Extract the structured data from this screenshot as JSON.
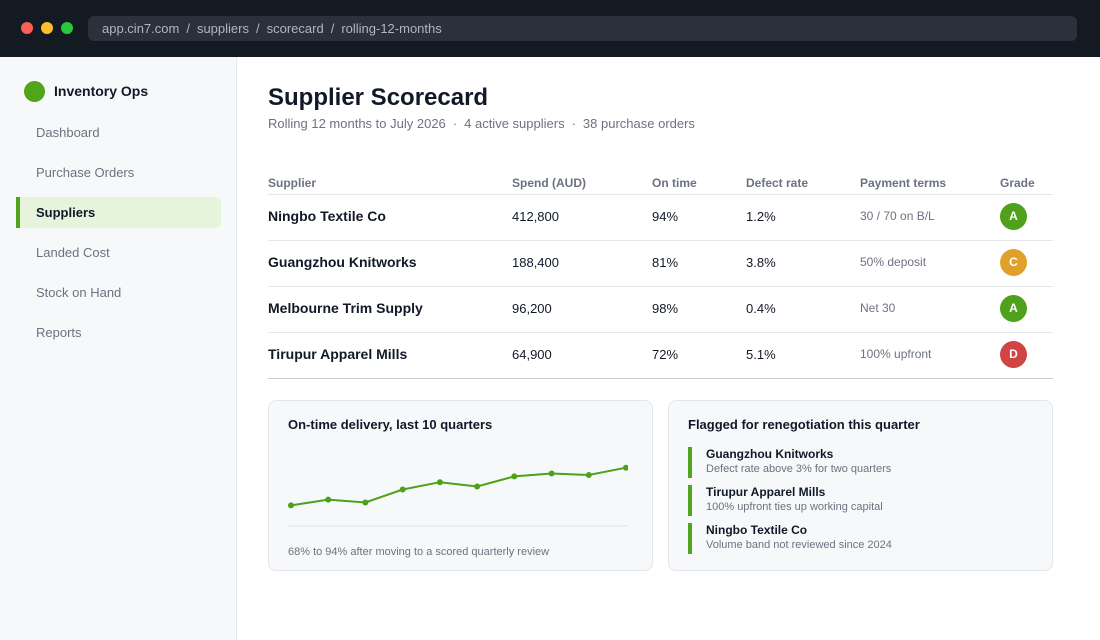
{
  "browser": {
    "url_parts": [
      "app.cin7.com",
      "suppliers",
      "scorecard",
      "rolling-12-months"
    ]
  },
  "sidebar": {
    "brand": "Inventory Ops",
    "items": [
      {
        "label": "Dashboard",
        "active": false
      },
      {
        "label": "Purchase Orders",
        "active": false
      },
      {
        "label": "Suppliers",
        "active": true
      },
      {
        "label": "Landed Cost",
        "active": false
      },
      {
        "label": "Stock on Hand",
        "active": false
      },
      {
        "label": "Reports",
        "active": false
      }
    ]
  },
  "header": {
    "title": "Supplier Scorecard",
    "subtitle_parts": [
      "Rolling 12 months to July 2026",
      "4 active suppliers",
      "38 purchase orders"
    ]
  },
  "table": {
    "columns": [
      "Supplier",
      "Spend (AUD)",
      "On time",
      "Defect rate",
      "Payment terms",
      "Grade"
    ],
    "rows": [
      {
        "supplier": "Ningbo Textile Co",
        "spend": "412,800",
        "on_time": "94%",
        "defect": "1.2%",
        "terms": "30 / 70 on B/L",
        "grade": "A"
      },
      {
        "supplier": "Guangzhou Knitworks",
        "spend": "188,400",
        "on_time": "81%",
        "defect": "3.8%",
        "terms": "50% deposit",
        "grade": "C"
      },
      {
        "supplier": "Melbourne Trim Supply",
        "spend": "96,200",
        "on_time": "98%",
        "defect": "0.4%",
        "terms": "Net 30",
        "grade": "A"
      },
      {
        "supplier": "Tirupur Apparel Mills",
        "spend": "64,900",
        "on_time": "72%",
        "defect": "5.1%",
        "terms": "100% upfront",
        "grade": "D"
      }
    ]
  },
  "grade_colors": {
    "A": "#4fa01a",
    "C": "#e0a02a",
    "D": "#d04444"
  },
  "colors": {
    "accent": "#52a41a"
  },
  "trend_card": {
    "title": "On-time delivery, last 10 quarters",
    "caption": "68% to 94% after moving to a scored quarterly review"
  },
  "chart_data": {
    "type": "line",
    "x": [
      1,
      2,
      3,
      4,
      5,
      6,
      7,
      8,
      9,
      10
    ],
    "values": [
      68,
      72,
      70,
      79,
      84,
      81,
      88,
      90,
      89,
      94
    ],
    "ylim": [
      60,
      100
    ],
    "grid": false,
    "color": "#4fa01a"
  },
  "flag_card": {
    "title": "Flagged for renegotiation this quarter",
    "items": [
      {
        "name": "Guangzhou Knitworks",
        "note": "Defect rate above 3% for two quarters"
      },
      {
        "name": "Tirupur Apparel Mills",
        "note": "100% upfront ties up working capital"
      },
      {
        "name": "Ningbo Textile Co",
        "note": "Volume band not reviewed since 2024"
      }
    ]
  }
}
